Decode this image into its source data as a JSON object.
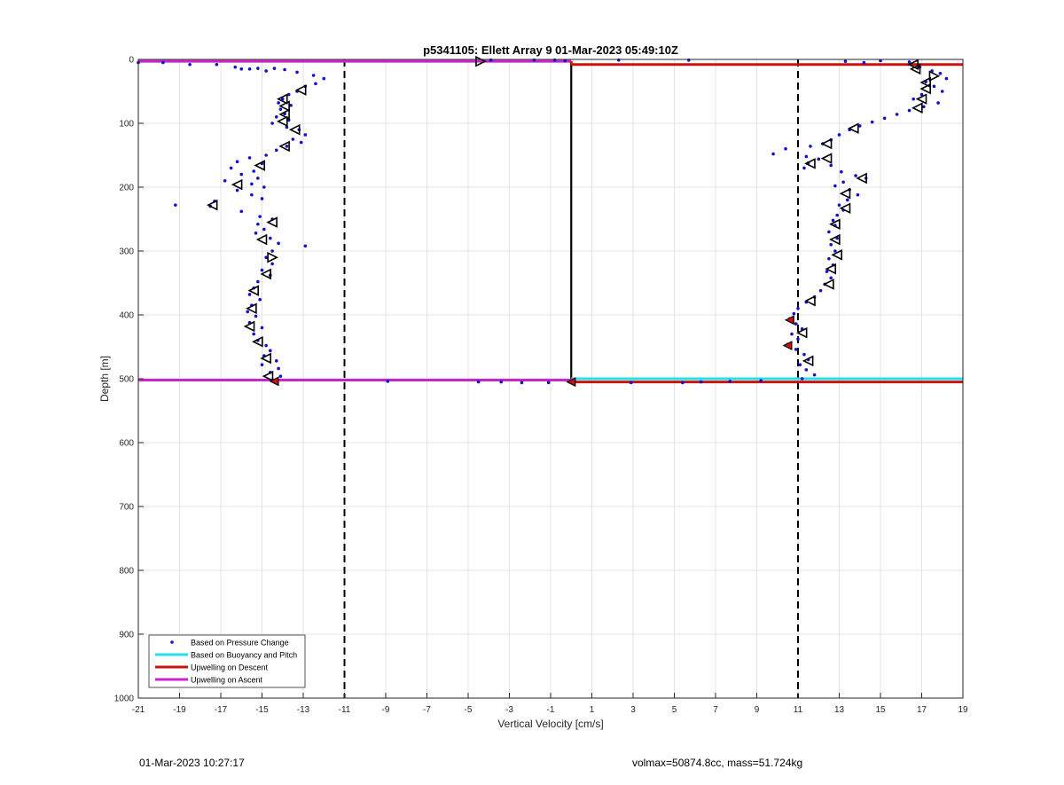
{
  "chart_data": {
    "type": "scatter",
    "title": "p5341105: Ellett Array 9 01-Mar-2023 05:49:10Z",
    "xlabel": "Vertical Velocity [cm/s]",
    "ylabel": "Depth [m]",
    "xlim": [
      -21,
      19
    ],
    "ylim": [
      0,
      1000
    ],
    "y_reversed": true,
    "xticks": [
      -21,
      -19,
      -17,
      -15,
      -13,
      -11,
      -9,
      -7,
      -5,
      -3,
      -1,
      1,
      3,
      5,
      7,
      9,
      11,
      13,
      15,
      17,
      19
    ],
    "yticks": [
      0,
      100,
      200,
      300,
      400,
      500,
      600,
      700,
      800,
      900,
      1000
    ],
    "grid": true,
    "legend_placement": "bottom-left",
    "legend": [
      {
        "label": "Based on Pressure Change",
        "color": "#1010d0",
        "kind": "marker"
      },
      {
        "label": "Based on Buoyancy and Pitch",
        "color": "#22e0e8",
        "kind": "line"
      },
      {
        "label": "Upwelling on Descent",
        "color": "#cc1111",
        "kind": "line"
      },
      {
        "label": "Upwelling on Ascent",
        "color": "#cc22cc",
        "kind": "line"
      }
    ],
    "reference_lines": {
      "solid_zero_x": 0,
      "dashed_x": [
        -11,
        11
      ]
    },
    "series": [
      {
        "name": "Upwelling on Ascent",
        "color": "#cc22cc",
        "segments": [
          {
            "x": [
              -21,
              0
            ],
            "y": [
              3,
              3
            ]
          },
          {
            "x": [
              -21,
              0
            ],
            "y": [
              502,
              502
            ]
          }
        ]
      },
      {
        "name": "Upwelling on Descent",
        "color": "#cc1111",
        "segments": [
          {
            "x": [
              0,
              19
            ],
            "y": [
              8,
              8
            ]
          },
          {
            "x": [
              0,
              0
            ],
            "y": [
              3,
              8
            ]
          },
          {
            "x": [
              0,
              19
            ],
            "y": [
              505,
              505
            ]
          }
        ]
      },
      {
        "name": "Based on Buoyancy and Pitch",
        "color": "#22e0e8",
        "segments": [
          {
            "x": [
              0,
              19
            ],
            "y": [
              500,
              500
            ]
          }
        ]
      },
      {
        "name": "Based on Pressure Change",
        "color": "#1010d0",
        "ascent_points": [
          [
            -21,
            5
          ],
          [
            -19.8,
            5
          ],
          [
            -18.5,
            8
          ],
          [
            -17.2,
            8
          ],
          [
            -16.3,
            12
          ],
          [
            -16.0,
            15
          ],
          [
            -15.6,
            15
          ],
          [
            -15.2,
            14
          ],
          [
            -14.8,
            18
          ],
          [
            -14.4,
            14
          ],
          [
            -13.9,
            16
          ],
          [
            -13.3,
            20
          ],
          [
            -12.5,
            25
          ],
          [
            -12.0,
            30
          ],
          [
            -12.4,
            38
          ],
          [
            -12.9,
            42
          ],
          [
            -13.3,
            50
          ],
          [
            -13.7,
            55
          ],
          [
            -14.0,
            62
          ],
          [
            -14.2,
            68
          ],
          [
            -13.6,
            72
          ],
          [
            -14.1,
            78
          ],
          [
            -13.9,
            85
          ],
          [
            -14.3,
            90
          ],
          [
            -13.7,
            95
          ],
          [
            -14.5,
            100
          ],
          [
            -13.8,
            106
          ],
          [
            -13.2,
            110
          ],
          [
            -12.9,
            118
          ],
          [
            -13.5,
            125
          ],
          [
            -13.1,
            130
          ],
          [
            -13.8,
            136
          ],
          [
            -14.3,
            142
          ],
          [
            -14.8,
            150
          ],
          [
            -15.6,
            154
          ],
          [
            -16.2,
            160
          ],
          [
            -15.0,
            163
          ],
          [
            -16.5,
            170
          ],
          [
            -15.4,
            175
          ],
          [
            -16.0,
            180
          ],
          [
            -15.2,
            186
          ],
          [
            -16.8,
            190
          ],
          [
            -15.5,
            195
          ],
          [
            -14.9,
            200
          ],
          [
            -16.2,
            205
          ],
          [
            -15.5,
            212
          ],
          [
            -15.0,
            218
          ],
          [
            -17.3,
            222
          ],
          [
            -19.2,
            228
          ],
          [
            -17.5,
            230
          ],
          [
            -16.0,
            238
          ],
          [
            -15.1,
            246
          ],
          [
            -14.5,
            250
          ],
          [
            -15.2,
            258
          ],
          [
            -14.9,
            266
          ],
          [
            -15.3,
            272
          ],
          [
            -14.6,
            280
          ],
          [
            -14.2,
            288
          ],
          [
            -12.9,
            292
          ],
          [
            -14.5,
            300
          ],
          [
            -14.8,
            310
          ],
          [
            -14.5,
            320
          ],
          [
            -15.0,
            330
          ],
          [
            -14.6,
            338
          ],
          [
            -15.2,
            348
          ],
          [
            -15.4,
            358
          ],
          [
            -15.6,
            368
          ],
          [
            -15.1,
            376
          ],
          [
            -15.5,
            385
          ],
          [
            -15.7,
            395
          ],
          [
            -15.3,
            402
          ],
          [
            -15.6,
            412
          ],
          [
            -15.0,
            420
          ],
          [
            -15.4,
            430
          ],
          [
            -15.2,
            440
          ],
          [
            -14.8,
            448
          ],
          [
            -14.6,
            456
          ],
          [
            -14.9,
            464
          ],
          [
            -14.3,
            472
          ],
          [
            -15.0,
            478
          ],
          [
            -14.2,
            484
          ],
          [
            -14.6,
            490
          ],
          [
            -14.1,
            496
          ]
        ],
        "descent_points": [
          [
            16.4,
            4
          ],
          [
            14.2,
            5
          ],
          [
            16.9,
            12
          ],
          [
            17.5,
            18
          ],
          [
            17.9,
            22
          ],
          [
            18.2,
            30
          ],
          [
            17.2,
            35
          ],
          [
            17.6,
            42
          ],
          [
            18.0,
            50
          ],
          [
            17.0,
            55
          ],
          [
            16.6,
            62
          ],
          [
            17.8,
            68
          ],
          [
            17.1,
            74
          ],
          [
            16.4,
            80
          ],
          [
            15.8,
            86
          ],
          [
            15.2,
            92
          ],
          [
            14.6,
            98
          ],
          [
            14.0,
            104
          ],
          [
            13.5,
            110
          ],
          [
            13.0,
            118
          ],
          [
            12.6,
            126
          ],
          [
            12.2,
            132
          ],
          [
            11.6,
            136
          ],
          [
            10.4,
            140
          ],
          [
            9.8,
            148
          ],
          [
            11.4,
            152
          ],
          [
            12.0,
            156
          ],
          [
            11.5,
            162
          ],
          [
            12.6,
            166
          ],
          [
            11.3,
            170
          ],
          [
            13.1,
            176
          ],
          [
            13.8,
            182
          ],
          [
            14.3,
            186
          ],
          [
            13.2,
            192
          ],
          [
            12.8,
            198
          ],
          [
            13.5,
            204
          ],
          [
            13.9,
            212
          ],
          [
            13.4,
            220
          ],
          [
            13.0,
            228
          ],
          [
            13.2,
            236
          ],
          [
            12.9,
            244
          ],
          [
            12.7,
            252
          ],
          [
            12.8,
            260
          ],
          [
            12.5,
            270
          ],
          [
            12.9,
            280
          ],
          [
            12.6,
            290
          ],
          [
            12.8,
            300
          ],
          [
            12.5,
            312
          ],
          [
            12.7,
            322
          ],
          [
            12.4,
            332
          ],
          [
            12.6,
            342
          ],
          [
            12.3,
            352
          ],
          [
            12.1,
            362
          ],
          [
            11.8,
            372
          ],
          [
            11.4,
            380
          ],
          [
            11.0,
            390
          ],
          [
            10.8,
            398
          ],
          [
            10.6,
            406
          ],
          [
            10.9,
            414
          ],
          [
            11.2,
            422
          ],
          [
            10.7,
            430
          ],
          [
            11.0,
            438
          ],
          [
            10.5,
            446
          ],
          [
            10.9,
            454
          ],
          [
            11.3,
            462
          ],
          [
            11.5,
            470
          ],
          [
            11.1,
            478
          ],
          [
            11.4,
            486
          ],
          [
            11.8,
            494
          ],
          [
            11.2,
            500
          ]
        ],
        "surface_points": [
          [
            -3.9,
            1
          ],
          [
            -1.8,
            1
          ],
          [
            -0.8,
            1
          ],
          [
            -0.3,
            2
          ],
          [
            2.3,
            1
          ],
          [
            5.7,
            1
          ],
          [
            13.3,
            3
          ],
          [
            15.0,
            2
          ]
        ],
        "bottom_points": [
          [
            -8.9,
            504
          ],
          [
            -4.5,
            505
          ],
          [
            -3.4,
            505
          ],
          [
            -2.4,
            506
          ],
          [
            -1.1,
            506
          ],
          [
            2.9,
            506
          ],
          [
            5.4,
            506
          ],
          [
            6.3,
            505
          ],
          [
            7.7,
            504
          ],
          [
            9.2,
            503
          ]
        ]
      }
    ],
    "triangle_markers": {
      "ascent": [
        [
          -4.4,
          3,
          "right"
        ],
        [
          -14.0,
          62,
          "left"
        ],
        [
          -13.9,
          73,
          "left"
        ],
        [
          -13.9,
          86,
          "left"
        ],
        [
          -14.0,
          97,
          "left"
        ],
        [
          -13.4,
          110,
          "left"
        ],
        [
          -13.1,
          48,
          "left"
        ],
        [
          -13.9,
          136,
          "left"
        ],
        [
          -15.1,
          166,
          "left"
        ],
        [
          -16.2,
          196,
          "left"
        ],
        [
          -17.4,
          228,
          "left"
        ],
        [
          -14.5,
          255,
          "left"
        ],
        [
          -15.0,
          282,
          "left"
        ],
        [
          -14.5,
          310,
          "right"
        ],
        [
          -14.8,
          336,
          "left"
        ],
        [
          -15.4,
          362,
          "left"
        ],
        [
          -15.5,
          390,
          "left"
        ],
        [
          -15.6,
          418,
          "left"
        ],
        [
          -15.2,
          442,
          "left"
        ],
        [
          -14.8,
          468,
          "left"
        ],
        [
          -14.7,
          496,
          "left"
        ]
      ],
      "descent": [
        [
          16.6,
          8,
          "left"
        ],
        [
          16.7,
          15,
          "left"
        ],
        [
          17.6,
          26,
          "right"
        ],
        [
          17.2,
          36,
          "left"
        ],
        [
          17.2,
          46,
          "left"
        ],
        [
          17.0,
          62,
          "left"
        ],
        [
          16.8,
          76,
          "left"
        ],
        [
          13.7,
          108,
          "left"
        ],
        [
          12.4,
          132,
          "left"
        ],
        [
          12.4,
          155,
          "left"
        ],
        [
          11.6,
          163,
          "left"
        ],
        [
          14.1,
          186,
          "left"
        ],
        [
          13.3,
          210,
          "left"
        ],
        [
          13.3,
          233,
          "left"
        ],
        [
          12.8,
          258,
          "left"
        ],
        [
          12.8,
          282,
          "left"
        ],
        [
          12.9,
          306,
          "left"
        ],
        [
          12.6,
          328,
          "left"
        ],
        [
          12.5,
          352,
          "left"
        ],
        [
          11.6,
          378,
          "left"
        ],
        [
          11.2,
          428,
          "left"
        ],
        [
          11.5,
          472,
          "left"
        ]
      ],
      "red_markers": [
        [
          10.6,
          408
        ],
        [
          10.5,
          448
        ],
        [
          -14.4,
          504
        ],
        [
          0,
          505
        ]
      ]
    }
  },
  "footer": {
    "timestamp": "01-Mar-2023 10:27:17",
    "info": "volmax=50874.8cc, mass=51.724kg"
  }
}
